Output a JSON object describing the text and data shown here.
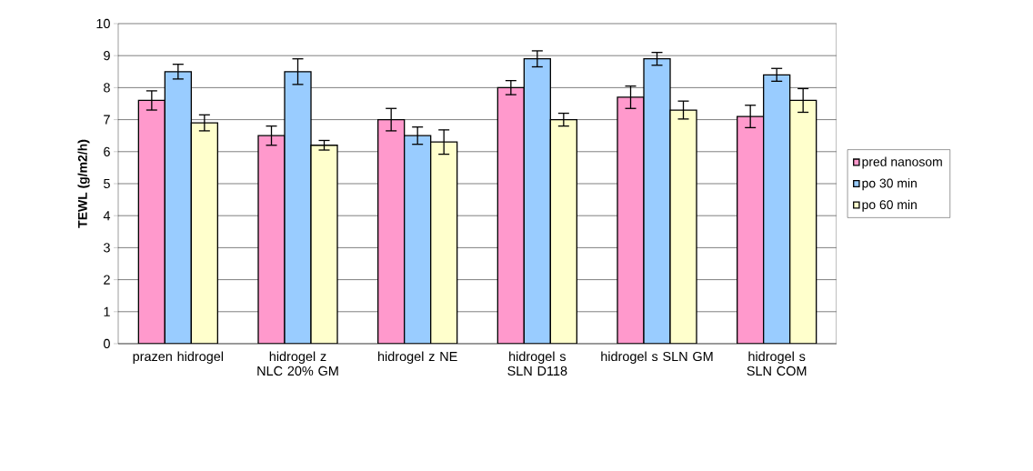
{
  "chart_data": {
    "type": "bar",
    "ylabel": "TEWL (g/m2/h)",
    "categories": [
      "prazen hidrogel",
      "hidrogel z NLC 20% GM",
      "hidrogel z NE",
      "hidrogel s SLN D118",
      "hidrogel s SLN GM",
      "hidrogel s SLN COM"
    ],
    "series": [
      {
        "name": "pred nanosom",
        "color": "#ff99cc",
        "values": [
          7.6,
          6.5,
          7.0,
          8.0,
          7.7,
          7.1
        ],
        "errors": [
          0.3,
          0.3,
          0.35,
          0.22,
          0.35,
          0.35
        ]
      },
      {
        "name": "po 30 min",
        "color": "#99ccff",
        "values": [
          8.5,
          8.5,
          6.5,
          8.9,
          8.9,
          8.4
        ],
        "errors": [
          0.23,
          0.4,
          0.27,
          0.25,
          0.2,
          0.2
        ]
      },
      {
        "name": "po 60 min",
        "color": "#ffffcc",
        "values": [
          6.9,
          6.2,
          6.3,
          7.0,
          7.3,
          7.6
        ],
        "errors": [
          0.25,
          0.15,
          0.38,
          0.2,
          0.28,
          0.37
        ]
      }
    ],
    "ylim": [
      0,
      10
    ],
    "yticks": [
      0,
      1,
      2,
      3,
      4,
      5,
      6,
      7,
      8,
      9,
      10
    ],
    "grid": "y",
    "legend": "right"
  }
}
